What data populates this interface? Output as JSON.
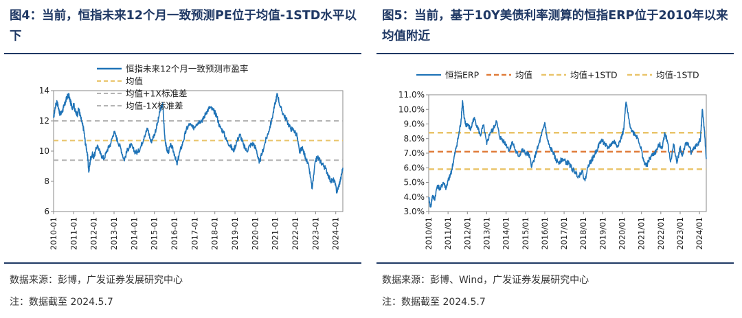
{
  "colors": {
    "title": "#1f3864",
    "series": "#1f73b7",
    "mean_orange": "#e07b39",
    "band_yellow": "#e9c46a",
    "band_gray": "#b3b3b3"
  },
  "left": {
    "title": "图4：当前，恒指未来12个月一致预测PE位于均值-1STD水平以下",
    "source": "数据来源：彭博，广发证券发展研究中心",
    "remark": "注：数据截至 2024.5.7"
  },
  "right": {
    "title": "图5：当前，基于10Y美债利率测算的恒指ERP位于2010年以来均值附近",
    "source": "数据来源：彭博、Wind，广发证券发展研究中心",
    "remark": "注：数据截至 2024.5.7"
  },
  "chart_data": [
    {
      "type": "line",
      "legend": [
        "恒指未来12个月一致预测市盈率",
        "均值",
        "均值+1X标准差",
        "均值-1X标准差"
      ],
      "ylim": [
        6,
        14
      ],
      "yticks": [
        "6",
        "8",
        "10",
        "12",
        "14"
      ],
      "xticks": [
        "2010-01",
        "2011-01",
        "2012-01",
        "2013-01",
        "2014-01",
        "2015-01",
        "2016-01",
        "2017-01",
        "2018-01",
        "2019-01",
        "2020-01",
        "2021-01",
        "2022-01",
        "2023-01",
        "2024-01"
      ],
      "xlim": [
        2010.0,
        2024.35
      ],
      "mean": 10.7,
      "plus_1std": 12.0,
      "minus_1std": 9.4,
      "series": [
        {
          "name": "恒指未来12个月一致预测市盈率",
          "x": [
            2010.0,
            2010.08,
            2010.17,
            2010.25,
            2010.33,
            2010.42,
            2010.5,
            2010.58,
            2010.67,
            2010.75,
            2010.83,
            2010.92,
            2011.0,
            2011.08,
            2011.17,
            2011.25,
            2011.33,
            2011.42,
            2011.5,
            2011.58,
            2011.67,
            2011.75,
            2011.83,
            2011.92,
            2012.0,
            2012.17,
            2012.33,
            2012.5,
            2012.67,
            2012.83,
            2013.0,
            2013.17,
            2013.33,
            2013.5,
            2013.67,
            2013.83,
            2014.0,
            2014.17,
            2014.33,
            2014.5,
            2014.67,
            2014.83,
            2015.0,
            2015.17,
            2015.3,
            2015.42,
            2015.5,
            2015.58,
            2015.67,
            2015.83,
            2016.0,
            2016.12,
            2016.25,
            2016.42,
            2016.58,
            2016.75,
            2016.92,
            2017.08,
            2017.25,
            2017.42,
            2017.58,
            2017.75,
            2017.92,
            2018.08,
            2018.25,
            2018.42,
            2018.58,
            2018.75,
            2018.92,
            2019.08,
            2019.25,
            2019.42,
            2019.58,
            2019.75,
            2019.92,
            2020.08,
            2020.2,
            2020.33,
            2020.5,
            2020.67,
            2020.83,
            2021.0,
            2021.1,
            2021.25,
            2021.42,
            2021.58,
            2021.75,
            2021.92,
            2022.08,
            2022.2,
            2022.33,
            2022.5,
            2022.67,
            2022.83,
            2023.0,
            2023.1,
            2023.25,
            2023.42,
            2023.58,
            2023.75,
            2023.92,
            2024.05,
            2024.15,
            2024.25,
            2024.35
          ],
          "y": [
            12.2,
            12.9,
            13.3,
            12.8,
            12.4,
            12.6,
            12.9,
            13.2,
            13.6,
            13.7,
            13.3,
            12.9,
            13.1,
            12.6,
            12.4,
            12.8,
            12.3,
            11.8,
            11.4,
            10.5,
            9.9,
            8.6,
            9.5,
            9.8,
            9.6,
            10.4,
            9.8,
            9.5,
            10.1,
            10.5,
            11.3,
            10.7,
            10.2,
            9.4,
            10.1,
            10.4,
            10.0,
            9.9,
            10.3,
            11.0,
            11.5,
            10.6,
            11.1,
            11.9,
            12.8,
            13.1,
            11.2,
            10.3,
            9.9,
            10.4,
            9.8,
            9.1,
            9.9,
            10.6,
            11.4,
            11.8,
            11.5,
            11.8,
            12.0,
            12.1,
            12.6,
            12.9,
            12.7,
            12.4,
            11.6,
            11.3,
            10.7,
            10.4,
            10.0,
            10.6,
            11.1,
            10.4,
            10.0,
            10.4,
            10.5,
            10.0,
            9.2,
            9.8,
            10.6,
            11.3,
            12.1,
            13.2,
            13.8,
            12.9,
            12.4,
            12.0,
            11.5,
            11.4,
            11.0,
            9.9,
            10.2,
            9.6,
            8.9,
            7.5,
            9.4,
            9.6,
            9.3,
            9.0,
            8.6,
            8.0,
            8.1,
            7.3,
            7.7,
            8.2,
            8.9
          ]
        }
      ]
    },
    {
      "type": "line",
      "legend": [
        "恒指ERP",
        "均值",
        "均值+1STD",
        "均值-1STD"
      ],
      "ylim": [
        3.0,
        11.0
      ],
      "yticks": [
        "3.0%",
        "4.0%",
        "5.0%",
        "6.0%",
        "7.0%",
        "8.0%",
        "9.0%",
        "10.0%",
        "11.0%"
      ],
      "xticks": [
        "2010/01",
        "2011/01",
        "2012/01",
        "2013/01",
        "2014/01",
        "2015/01",
        "2016/01",
        "2017/01",
        "2018/01",
        "2019/01",
        "2020/01",
        "2021/01",
        "2022/01",
        "2023/01",
        "2024/01"
      ],
      "xlim": [
        2010.0,
        2024.35
      ],
      "mean": 7.1,
      "plus_1std": 8.4,
      "minus_1std": 5.9,
      "series": [
        {
          "name": "恒指ERP",
          "x": [
            2010.0,
            2010.1,
            2010.2,
            2010.3,
            2010.45,
            2010.6,
            2010.75,
            2010.9,
            2011.0,
            2011.1,
            2011.2,
            2011.3,
            2011.42,
            2011.55,
            2011.67,
            2011.75,
            2011.83,
            2011.92,
            2012.0,
            2012.17,
            2012.33,
            2012.5,
            2012.67,
            2012.83,
            2013.0,
            2013.17,
            2013.33,
            2013.5,
            2013.67,
            2013.83,
            2014.0,
            2014.17,
            2014.33,
            2014.5,
            2014.67,
            2014.83,
            2015.0,
            2015.17,
            2015.33,
            2015.5,
            2015.67,
            2015.83,
            2016.0,
            2016.12,
            2016.25,
            2016.42,
            2016.58,
            2016.75,
            2016.92,
            2017.08,
            2017.25,
            2017.42,
            2017.58,
            2017.75,
            2017.92,
            2018.08,
            2018.25,
            2018.42,
            2018.58,
            2018.75,
            2018.92,
            2019.08,
            2019.25,
            2019.42,
            2019.58,
            2019.75,
            2019.92,
            2020.08,
            2020.2,
            2020.33,
            2020.5,
            2020.67,
            2020.83,
            2021.0,
            2021.1,
            2021.25,
            2021.42,
            2021.58,
            2021.75,
            2021.92,
            2022.08,
            2022.2,
            2022.33,
            2022.5,
            2022.67,
            2022.83,
            2023.0,
            2023.1,
            2023.25,
            2023.42,
            2023.58,
            2023.75,
            2023.92,
            2024.05,
            2024.15,
            2024.25,
            2024.35
          ],
          "y": [
            3.9,
            3.3,
            4.1,
            3.8,
            4.8,
            4.5,
            5.0,
            4.6,
            5.1,
            5.4,
            5.9,
            6.6,
            7.4,
            8.2,
            9.2,
            10.6,
            9.4,
            8.9,
            9.0,
            8.6,
            9.4,
            8.9,
            8.2,
            8.9,
            7.6,
            8.4,
            8.6,
            9.2,
            8.1,
            7.9,
            7.6,
            7.2,
            7.8,
            7.1,
            6.8,
            7.2,
            7.0,
            6.9,
            6.1,
            6.8,
            7.5,
            8.2,
            9.1,
            8.0,
            7.4,
            7.1,
            6.5,
            6.4,
            6.6,
            6.4,
            6.3,
            5.9,
            5.7,
            5.4,
            5.8,
            5.1,
            6.2,
            6.5,
            6.9,
            7.4,
            7.9,
            7.7,
            7.3,
            7.6,
            7.8,
            7.5,
            7.9,
            8.6,
            10.5,
            9.4,
            8.5,
            8.3,
            8.0,
            7.2,
            6.5,
            6.1,
            6.6,
            6.9,
            7.1,
            7.6,
            7.4,
            8.4,
            7.9,
            6.4,
            7.6,
            6.3,
            7.4,
            6.8,
            7.5,
            7.7,
            7.0,
            7.4,
            7.6,
            8.0,
            10.0,
            8.6,
            6.6
          ]
        }
      ]
    }
  ]
}
